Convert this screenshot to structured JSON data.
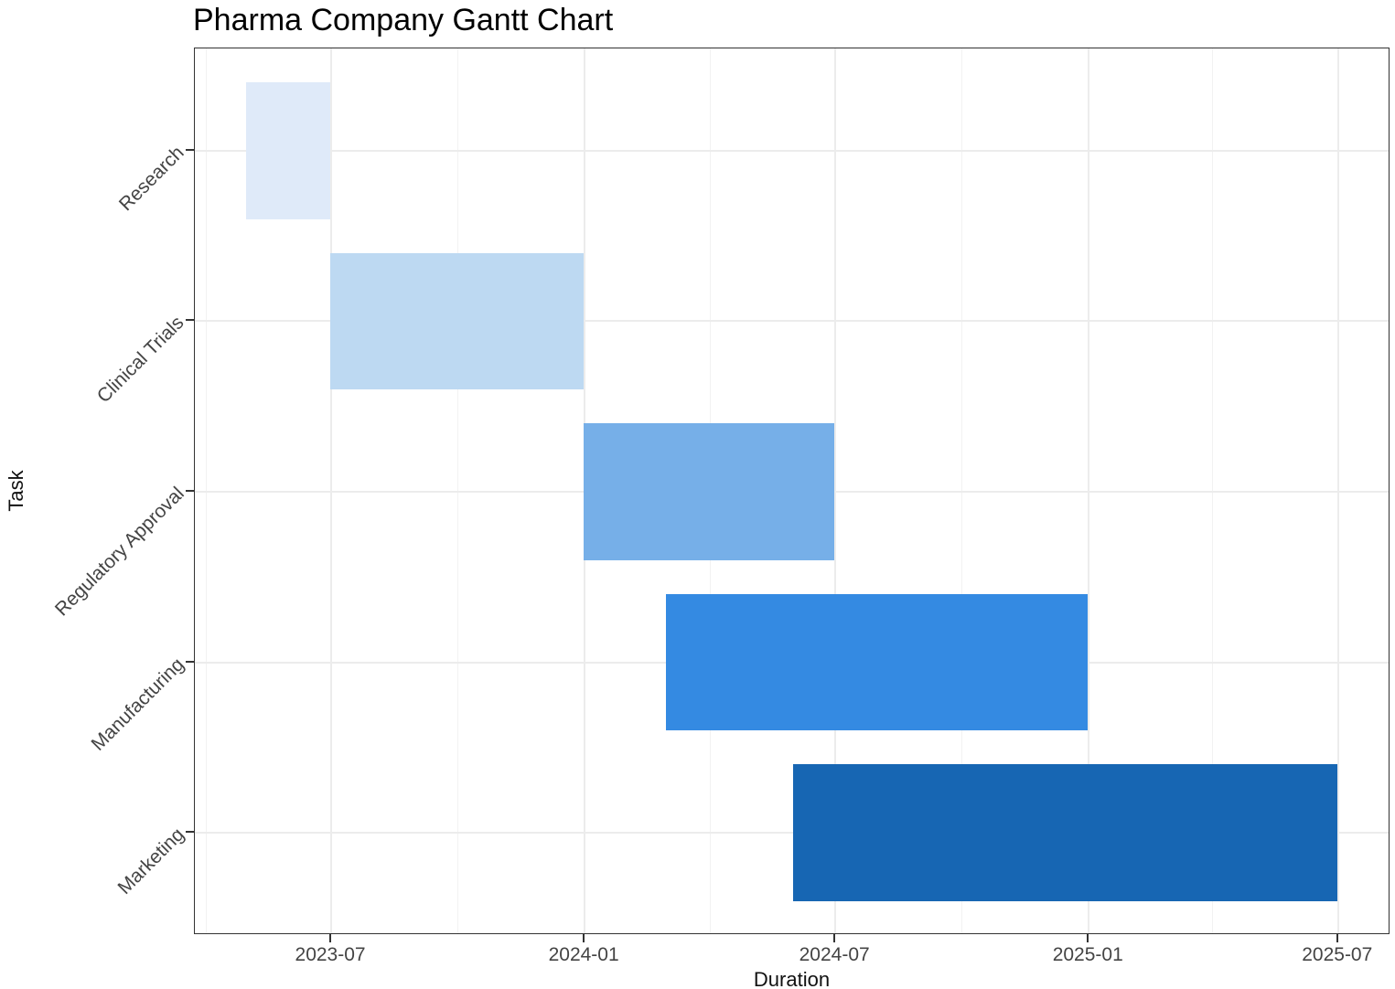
{
  "title": "Pharma Company Gantt Chart",
  "chart_data": {
    "type": "bar",
    "variant": "gantt",
    "title": "Pharma Company Gantt Chart",
    "xlabel": "Duration",
    "ylabel": "Task",
    "legend": false,
    "grid": {
      "major": true,
      "minor_vertical": true,
      "major_color": "#ececec",
      "minor_color": "#f2f2f2"
    },
    "panel_border_color": "#333333",
    "tick_label_color": "#444444",
    "x_domain": [
      "2023-03-24",
      "2025-08-08"
    ],
    "x_ticks": [
      {
        "date": "2023-07-01",
        "label": "2023-07"
      },
      {
        "date": "2024-01-01",
        "label": "2024-01"
      },
      {
        "date": "2024-07-01",
        "label": "2024-07"
      },
      {
        "date": "2025-01-01",
        "label": "2025-01"
      },
      {
        "date": "2025-07-01",
        "label": "2025-07"
      }
    ],
    "x_minor_ticks": [
      "2023-04-01",
      "2023-10-01",
      "2024-04-01",
      "2024-10-01",
      "2025-04-01"
    ],
    "tasks": [
      {
        "label": "Research",
        "start": "2023-05-01",
        "end": "2023-07-01",
        "color": "#dfeaf9"
      },
      {
        "label": "Clinical Trials",
        "start": "2023-07-01",
        "end": "2024-01-01",
        "color": "#bdd9f2"
      },
      {
        "label": "Regulatory Approval",
        "start": "2024-01-01",
        "end": "2024-07-01",
        "color": "#76afe8"
      },
      {
        "label": "Manufacturing",
        "start": "2024-03-01",
        "end": "2025-01-01",
        "color": "#348ae2"
      },
      {
        "label": "Marketing",
        "start": "2024-06-01",
        "end": "2025-07-01",
        "color": "#1766b3"
      }
    ]
  }
}
